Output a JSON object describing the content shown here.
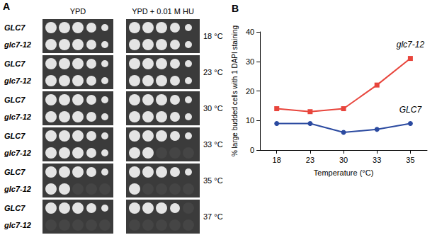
{
  "figure_a": {
    "panel_label": "A",
    "columns": [
      "YPD",
      "YPD + 0.01 M HU"
    ],
    "rows": [
      {
        "temperature": "18 °C",
        "strains": [
          {
            "name": "GLC7",
            "spots": [
              5,
              5
            ]
          },
          {
            "name": "glc7-12",
            "spots": [
              5,
              5
            ]
          }
        ]
      },
      {
        "temperature": "23 °C",
        "strains": [
          {
            "name": "GLC7",
            "spots": [
              5,
              5
            ]
          },
          {
            "name": "glc7-12",
            "spots": [
              5,
              5
            ]
          }
        ]
      },
      {
        "temperature": "30 °C",
        "strains": [
          {
            "name": "GLC7",
            "spots": [
              5,
              5
            ]
          },
          {
            "name": "glc7-12",
            "spots": [
              5,
              5
            ]
          }
        ]
      },
      {
        "temperature": "33 °C",
        "strains": [
          {
            "name": "GLC7",
            "spots": [
              5,
              5
            ]
          },
          {
            "name": "glc7-12",
            "spots": [
              5,
              2
            ]
          }
        ]
      },
      {
        "temperature": "35 °C",
        "strains": [
          {
            "name": "GLC7",
            "spots": [
              5,
              5
            ]
          },
          {
            "name": "glc7-12",
            "spots": [
              2,
              1
            ]
          }
        ]
      },
      {
        "temperature": "37 °C",
        "strains": [
          {
            "name": "GLC7",
            "spots": [
              5,
              4
            ]
          },
          {
            "name": "glc7-12",
            "spots": [
              0,
              0
            ]
          }
        ]
      }
    ]
  },
  "chart_data": {
    "panel_label": "B",
    "type": "line",
    "x_label": "Temperature (°C)",
    "y_label": "% large budded cells with 1 DAPI staining",
    "categories": [
      "18",
      "23",
      "30",
      "33",
      "35"
    ],
    "series": [
      {
        "name": "glc7-12",
        "color": "#e8453c",
        "marker": "square",
        "values": [
          14,
          13,
          14,
          22,
          31
        ]
      },
      {
        "name": "GLC7",
        "color": "#2b4aa0",
        "marker": "circle",
        "values": [
          9,
          9,
          6,
          7,
          9
        ]
      }
    ],
    "ylim": [
      0,
      40
    ],
    "yticks": [
      0,
      10,
      20,
      30,
      40
    ],
    "grid": false
  }
}
